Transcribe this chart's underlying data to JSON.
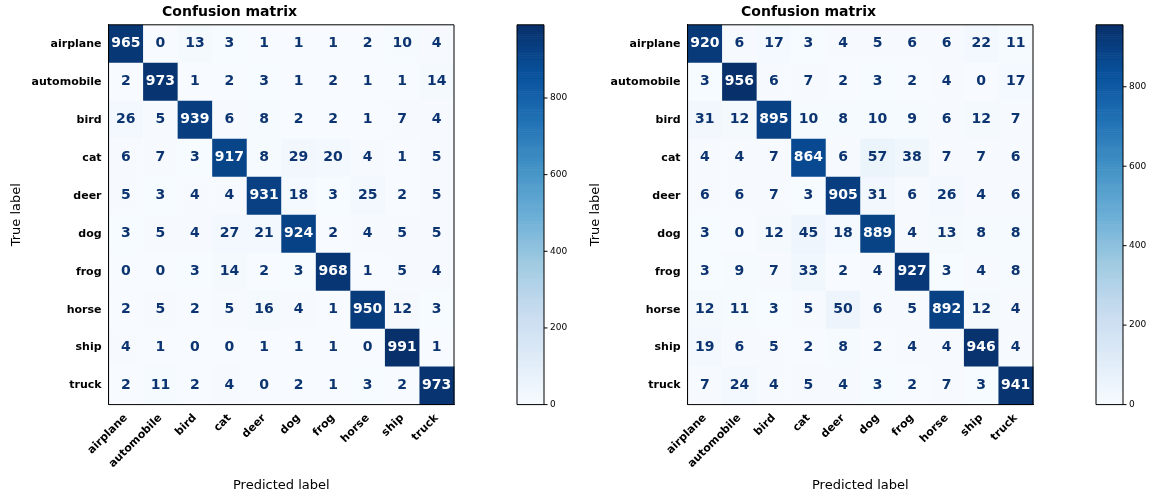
{
  "chart_data": [
    {
      "type": "heatmap",
      "title": "Confusion matrix",
      "xlabel": "Predicted label",
      "ylabel": "True label",
      "categories": [
        "airplane",
        "automobile",
        "bird",
        "cat",
        "deer",
        "dog",
        "frog",
        "horse",
        "ship",
        "truck"
      ],
      "y_categories": [
        "airplane",
        "automobile",
        "bird",
        "cat",
        "deer",
        "dog",
        "frog",
        "horse",
        "ship",
        "truck"
      ],
      "cells": [
        [
          965,
          0,
          13,
          3,
          1,
          1,
          1,
          2,
          10,
          4
        ],
        [
          2,
          973,
          1,
          2,
          3,
          1,
          2,
          1,
          1,
          14
        ],
        [
          26,
          5,
          939,
          6,
          8,
          2,
          2,
          1,
          7,
          4
        ],
        [
          6,
          7,
          3,
          917,
          8,
          29,
          20,
          4,
          1,
          5
        ],
        [
          5,
          3,
          4,
          4,
          931,
          18,
          3,
          25,
          2,
          5
        ],
        [
          3,
          5,
          4,
          27,
          21,
          924,
          2,
          4,
          5,
          5
        ],
        [
          0,
          0,
          3,
          14,
          2,
          3,
          968,
          1,
          5,
          4
        ],
        [
          2,
          5,
          2,
          5,
          16,
          4,
          1,
          950,
          12,
          3
        ],
        [
          4,
          1,
          0,
          0,
          1,
          1,
          1,
          0,
          991,
          1
        ],
        [
          2,
          11,
          2,
          4,
          0,
          2,
          1,
          3,
          2,
          973
        ]
      ],
      "clim": [
        0,
        991
      ],
      "cticks": [
        0,
        200,
        400,
        600,
        800
      ],
      "data_labels": true
    },
    {
      "type": "heatmap",
      "title": "Confusion matrix",
      "xlabel": "Predicted label",
      "ylabel": "True label",
      "categories": [
        "airplane",
        "automobile",
        "bird",
        "cat",
        "deer",
        "dog",
        "frog",
        "horse",
        "ship",
        "truck"
      ],
      "y_categories": [
        "airplane",
        "automobile",
        "bird",
        "cat",
        "deer",
        "dog",
        "frog",
        "horse",
        "ship",
        "truck"
      ],
      "cells": [
        [
          920,
          6,
          17,
          3,
          4,
          5,
          6,
          6,
          22,
          11
        ],
        [
          3,
          956,
          6,
          7,
          2,
          3,
          2,
          4,
          0,
          17
        ],
        [
          31,
          12,
          895,
          10,
          8,
          10,
          9,
          6,
          12,
          7
        ],
        [
          4,
          4,
          7,
          864,
          6,
          57,
          38,
          7,
          7,
          6
        ],
        [
          6,
          6,
          7,
          3,
          905,
          31,
          6,
          26,
          4,
          6
        ],
        [
          3,
          0,
          12,
          45,
          18,
          889,
          4,
          13,
          8,
          8
        ],
        [
          3,
          9,
          7,
          33,
          2,
          4,
          927,
          3,
          4,
          8
        ],
        [
          12,
          11,
          3,
          5,
          50,
          6,
          5,
          892,
          12,
          4
        ],
        [
          19,
          6,
          5,
          2,
          8,
          2,
          4,
          4,
          946,
          4
        ],
        [
          7,
          24,
          4,
          5,
          4,
          3,
          2,
          7,
          3,
          941
        ]
      ],
      "clim": [
        0,
        956
      ],
      "cticks": [
        0,
        200,
        400,
        600,
        800
      ],
      "data_labels": true
    }
  ]
}
